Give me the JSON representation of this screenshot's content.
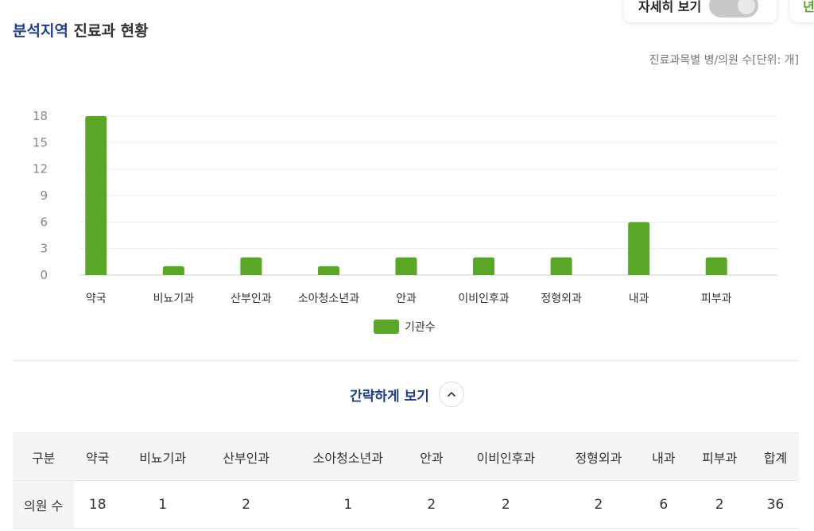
{
  "toggle": {
    "label": "자세히 보기"
  },
  "corner_card": {
    "glyph": "년"
  },
  "header": {
    "title_accent": "분석지역",
    "title_rest": "진료과 현황"
  },
  "unit_note": "진료과목별 병/의원 수[단위: 개]",
  "colors": {
    "bar": "#5aa626",
    "accent": "#1f3f8e",
    "grid": "#ececec",
    "tick": "#888888"
  },
  "chart_data": {
    "type": "bar",
    "categories": [
      "약국",
      "비뇨기과",
      "산부인과",
      "소아청소년과",
      "안과",
      "이비인후과",
      "정형외과",
      "내과",
      "피부과"
    ],
    "series": [
      {
        "name": "기관수",
        "values": [
          18,
          1,
          2,
          1,
          2,
          2,
          2,
          6,
          2
        ]
      }
    ],
    "yticks": [
      0,
      3,
      6,
      9,
      12,
      15,
      18
    ],
    "ylim": [
      0,
      18
    ],
    "grid": true,
    "legend": "bottom-center"
  },
  "collapse": {
    "label": "간략하게 보기",
    "icon": "chevron-up-icon"
  },
  "table": {
    "headers": [
      "구분",
      "약국",
      "비뇨기과",
      "산부인과",
      "소아청소년과",
      "안과",
      "이비인후과",
      "정형외과",
      "내과",
      "피부과",
      "합계"
    ],
    "rows": [
      {
        "label": "의원 수",
        "values": [
          "18",
          "1",
          "2",
          "1",
          "2",
          "2",
          "2",
          "6",
          "2",
          "36"
        ]
      }
    ]
  }
}
